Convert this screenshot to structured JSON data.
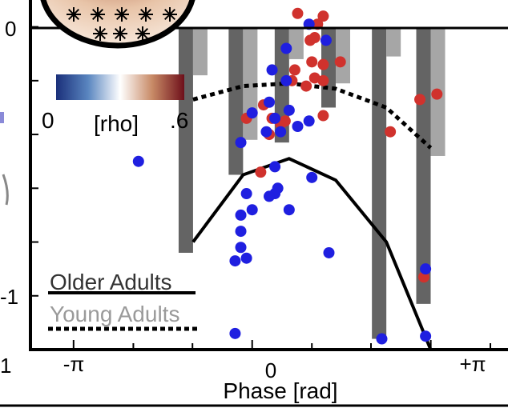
{
  "chart_data": {
    "type": "bar",
    "xlabel": "Phase [rad]",
    "x_tick_labels": [
      "-π",
      "0",
      "+π"
    ],
    "y_tick_labels": [
      "0",
      "-1"
    ],
    "xlim": [
      -3.9,
      4.5
    ],
    "ylim": [
      -1.2,
      0.1
    ],
    "colorbar": {
      "unit": "[rho]",
      "min_label": "0",
      "max_label": ".6",
      "colors": [
        "#1a2f7a",
        "#5a86c0",
        "#ffffff",
        "#c88a66",
        "#6e0f1a"
      ]
    },
    "legend": {
      "placement": "bottom-left",
      "older": "Older Adults",
      "young": "Young Adults"
    },
    "bins_x": [
      -1.04,
      -0.16,
      0.65,
      1.47,
      2.36,
      3.14
    ],
    "series": [
      {
        "name": "Older Adults",
        "color": "#646464",
        "bar_values": [
          -0.84,
          -0.55,
          -0.43,
          -0.3,
          -1.16,
          -1.03
        ],
        "line": {
          "x": [
            -1.04,
            -0.16,
            0.65,
            1.47,
            2.36,
            3.14
          ],
          "y": [
            -0.8,
            -0.55,
            -0.49,
            -0.57,
            -0.8,
            -1.2
          ]
        }
      },
      {
        "name": "Young Adults",
        "color": "#a6a6a6",
        "bar_values": [
          -0.18,
          -0.42,
          -0.12,
          -0.21,
          -0.11,
          -0.48
        ],
        "line": {
          "x": [
            -1.04,
            -0.16,
            0.65,
            1.47,
            2.36,
            3.14
          ],
          "y": [
            -0.27,
            -0.22,
            -0.21,
            -0.23,
            -0.3,
            -0.45
          ]
        }
      }
    ],
    "points": {
      "young_color": "#d0322d",
      "older_color": "#1f1fe0",
      "young": [
        [
          0.8,
          0.05
        ],
        [
          1.25,
          0.04
        ],
        [
          1.15,
          0.01
        ],
        [
          1.1,
          -0.04
        ],
        [
          1.02,
          -0.05
        ],
        [
          1.55,
          -0.13
        ],
        [
          1.05,
          -0.13
        ],
        [
          1.25,
          -0.14
        ],
        [
          1.25,
          -0.2
        ],
        [
          0.75,
          -0.16
        ],
        [
          0.7,
          -0.2
        ],
        [
          0.95,
          -0.22
        ],
        [
          1.1,
          -0.19
        ],
        [
          0.2,
          -0.29
        ],
        [
          0.35,
          -0.34
        ],
        [
          -0.1,
          -0.34
        ],
        [
          1.25,
          -0.33
        ],
        [
          0.58,
          -0.35
        ],
        [
          0.5,
          -0.36
        ],
        [
          0.3,
          -0.4
        ],
        [
          2.43,
          -0.39
        ],
        [
          2.95,
          -0.27
        ],
        [
          3.25,
          -0.25
        ],
        [
          0.15,
          -0.54
        ],
        [
          3.02,
          -0.93
        ]
      ],
      "older": [
        [
          1.0,
          0.01
        ],
        [
          1.3,
          -0.05
        ],
        [
          0.6,
          -0.08
        ],
        [
          0.35,
          -0.16
        ],
        [
          0.6,
          -0.2
        ],
        [
          0.3,
          -0.28
        ],
        [
          0.0,
          -0.32
        ],
        [
          0.65,
          -0.31
        ],
        [
          0.4,
          -0.34
        ],
        [
          1.0,
          -0.35
        ],
        [
          0.5,
          -0.39
        ],
        [
          0.25,
          -0.39
        ],
        [
          -0.2,
          -0.43
        ],
        [
          0.8,
          -0.37
        ],
        [
          -2.0,
          -0.5
        ],
        [
          0.4,
          -0.52
        ],
        [
          1.05,
          -0.56
        ],
        [
          0.45,
          -0.6
        ],
        [
          0.4,
          -0.62
        ],
        [
          0.3,
          -0.63
        ],
        [
          -0.1,
          -0.62
        ],
        [
          0.0,
          -0.68
        ],
        [
          0.65,
          -0.68
        ],
        [
          -0.2,
          -0.7
        ],
        [
          -0.2,
          -0.76
        ],
        [
          -0.2,
          -0.82
        ],
        [
          1.35,
          -0.84
        ],
        [
          -0.1,
          -0.86
        ],
        [
          -0.3,
          -0.87
        ],
        [
          3.05,
          -0.9
        ],
        [
          -0.3,
          -1.14
        ],
        [
          2.28,
          -1.16
        ],
        [
          3.05,
          -1.15
        ]
      ]
    }
  }
}
